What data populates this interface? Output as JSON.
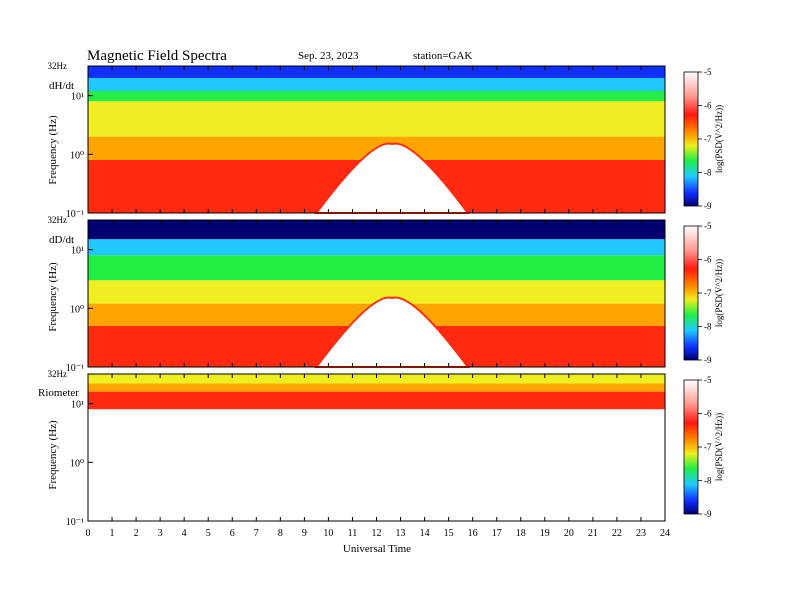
{
  "header": {
    "title": "Magnetic  Field  Spectra",
    "date": "Sep. 23, 2023",
    "station": "station=GAK"
  },
  "colors": {
    "white": "#ffffff",
    "red": "#ff2a10",
    "orange": "#ffa500",
    "yellow": "#eeee20",
    "green": "#22ee44",
    "cyan": "#20c8ff",
    "blue": "#1030ff",
    "navy": "#000070"
  },
  "chart_data": [
    {
      "type": "heatmap",
      "panel_label": "dH/dt",
      "ylabel": "Frequency  (Hz)",
      "top_label": "32Hz",
      "y_ticks": [
        "10⁻¹",
        "10⁰",
        "10¹"
      ],
      "y_scale": "log",
      "ylim": [
        0.1,
        32
      ],
      "xlim": [
        0,
        24
      ],
      "colorbar": {
        "label": "log(PSD(V^2/Hz))",
        "ticks": [
          "-5",
          "-6",
          "-7",
          "-8",
          "-9"
        ],
        "range": [
          -9,
          -5
        ]
      },
      "colorbar_side": "right",
      "description_bands": [
        {
          "f_low": 20,
          "f_high": 32,
          "level": -8.8
        },
        {
          "f_low": 12,
          "f_high": 20,
          "level": -8.3
        },
        {
          "f_low": 8,
          "f_high": 12,
          "level": -7.8
        },
        {
          "f_low": 2,
          "f_high": 8,
          "level": -7.3
        },
        {
          "f_low": 0.8,
          "f_high": 2,
          "level": -6.8
        },
        {
          "f_low": 0.1,
          "f_high": 0.8,
          "level": -6.0
        }
      ],
      "quiet_region_hours": [
        9.5,
        15.8
      ],
      "quiet_region_top_freq": 1.5
    },
    {
      "type": "heatmap",
      "panel_label": "dD/dt",
      "ylabel": "Frequency  (Hz)",
      "top_label": "32Hz",
      "y_ticks": [
        "10⁻¹",
        "10⁰",
        "10¹"
      ],
      "y_scale": "log",
      "ylim": [
        0.1,
        32
      ],
      "xlim": [
        0,
        24
      ],
      "colorbar": {
        "label": "log(PSD(V^2/Hz))",
        "ticks": [
          "-5",
          "-6",
          "-7",
          "-8",
          "-9"
        ],
        "range": [
          -9,
          -5
        ]
      },
      "colorbar_side": "right",
      "description_bands": [
        {
          "f_low": 15,
          "f_high": 32,
          "level": -8.9
        },
        {
          "f_low": 8,
          "f_high": 15,
          "level": -8.2
        },
        {
          "f_low": 3,
          "f_high": 8,
          "level": -7.9
        },
        {
          "f_low": 1.2,
          "f_high": 3,
          "level": -7.3
        },
        {
          "f_low": 0.5,
          "f_high": 1.2,
          "level": -6.7
        },
        {
          "f_low": 0.1,
          "f_high": 0.5,
          "level": -6.0
        }
      ],
      "quiet_region_hours": [
        9.5,
        15.8
      ],
      "quiet_region_top_freq": 1.5
    },
    {
      "type": "heatmap",
      "panel_label": "Riometer",
      "ylabel": "Frequency  (Hz)",
      "top_label": "32Hz",
      "y_ticks": [
        "10⁻¹",
        "10⁰",
        "10¹"
      ],
      "y_scale": "log",
      "ylim": [
        0.1,
        32
      ],
      "xlim": [
        0,
        24
      ],
      "xlabel": "Universal  Time",
      "x_ticks": [
        "0",
        "1",
        "2",
        "3",
        "4",
        "5",
        "6",
        "7",
        "8",
        "9",
        "10",
        "11",
        "12",
        "13",
        "14",
        "15",
        "16",
        "17",
        "18",
        "19",
        "20",
        "21",
        "22",
        "23",
        "24"
      ],
      "colorbar": {
        "label": "log(PSD(V^2/Hz))",
        "ticks": [
          "-5",
          "-6",
          "-7",
          "-8",
          "-9"
        ],
        "range": [
          -9,
          -5
        ]
      },
      "colorbar_side": "right",
      "description_bands": [
        {
          "f_low": 22,
          "f_high": 32,
          "level": -7.3
        },
        {
          "f_low": 16,
          "f_high": 22,
          "level": -6.6
        },
        {
          "f_low": 8,
          "f_high": 16,
          "level": -6.0
        },
        {
          "f_low": 0.1,
          "f_high": 8,
          "level": -5.0
        }
      ]
    }
  ]
}
